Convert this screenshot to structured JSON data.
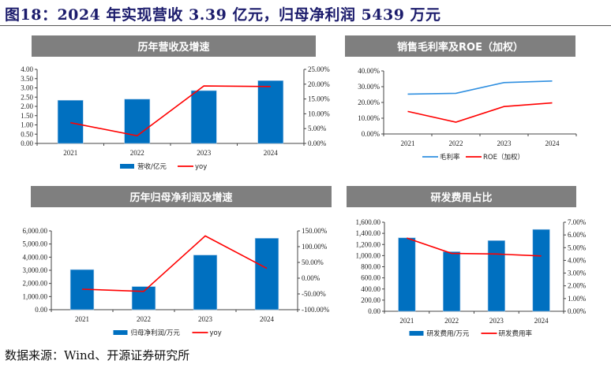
{
  "figure_title": "图18：2024 年实现营收 3.39 亿元，归母净利润 5439 万元",
  "source": "数据来源：Wind、开源证券研究所",
  "colors": {
    "bar": "#0070c0",
    "line_red": "#ff0000",
    "line_blue": "#2f8fe0",
    "panel_title_bg": "#7f7f7f",
    "title": "#1c1c6c"
  },
  "chart_data": [
    {
      "type": "bar+line",
      "title": "历年营收及增速",
      "categories": [
        "2021",
        "2022",
        "2023",
        "2024"
      ],
      "left_axis": {
        "range": [
          0,
          4
        ],
        "ticks": [
          "0.00",
          "0.50",
          "1.00",
          "1.50",
          "2.00",
          "2.50",
          "3.00",
          "3.50",
          "4.00"
        ]
      },
      "right_axis": {
        "range": [
          0,
          25
        ],
        "ticks": [
          "0.00%",
          "5.00%",
          "10.00%",
          "15.00%",
          "20.00%",
          "25.00%"
        ]
      },
      "series": [
        {
          "name": "营收/亿元",
          "kind": "bar",
          "axis": "left",
          "values": [
            2.33,
            2.39,
            2.85,
            3.39
          ]
        },
        {
          "name": "yoy",
          "kind": "line",
          "axis": "right",
          "color": "#ff0000",
          "values": [
            7.0,
            2.6,
            19.4,
            19.2
          ]
        }
      ],
      "legend": "bottom"
    },
    {
      "type": "line",
      "title": "销售毛利率及ROE（加权）",
      "categories": [
        "2021",
        "2022",
        "2023",
        "2024"
      ],
      "left_axis": {
        "range": [
          0,
          40
        ],
        "ticks": [
          "0.00%",
          "10.00%",
          "20.00%",
          "30.00%",
          "40.00%"
        ]
      },
      "series": [
        {
          "name": "毛利率",
          "kind": "line",
          "axis": "left",
          "color": "#2f8fe0",
          "values": [
            25.3,
            25.8,
            32.6,
            33.6
          ]
        },
        {
          "name": "ROE（加权）",
          "kind": "line",
          "axis": "left",
          "color": "#ff0000",
          "values": [
            14.3,
            7.5,
            17.4,
            19.7
          ]
        }
      ],
      "legend": "bottom"
    },
    {
      "type": "bar+line",
      "title": "历年归母净利润及增速",
      "categories": [
        "2021",
        "2022",
        "2023",
        "2024"
      ],
      "left_axis": {
        "range": [
          0,
          6000
        ],
        "ticks": [
          "0.00",
          "1,000.00",
          "2,000.00",
          "3,000.00",
          "4,000.00",
          "5,000.00",
          "6,000.00"
        ]
      },
      "right_axis": {
        "range": [
          -100,
          150
        ],
        "ticks": [
          "-100.00%",
          "-50.00%",
          "0.00%",
          "50.00%",
          "100.00%",
          "150.00%"
        ]
      },
      "series": [
        {
          "name": "归母净利润/万元",
          "kind": "bar",
          "axis": "left",
          "values": [
            3050,
            1760,
            4160,
            5439
          ]
        },
        {
          "name": "yoy",
          "kind": "line",
          "axis": "right",
          "color": "#ff0000",
          "values": [
            -35,
            -42,
            134,
            31
          ]
        }
      ],
      "legend": "bottom"
    },
    {
      "type": "bar+line",
      "title": "研发费用占比",
      "categories": [
        "2021",
        "2022",
        "2023",
        "2024"
      ],
      "left_axis": {
        "range": [
          0,
          1600
        ],
        "ticks": [
          "0.00",
          "200.00",
          "400.00",
          "600.00",
          "800.00",
          "1,000.00",
          "1,200.00",
          "1,400.00",
          "1,600.00"
        ]
      },
      "right_axis": {
        "range": [
          0,
          7
        ],
        "ticks": [
          "0.00%",
          "1.00%",
          "2.00%",
          "3.00%",
          "4.00%",
          "5.00%",
          "6.00%",
          "7.00%"
        ]
      },
      "series": [
        {
          "name": "研发费用/万元",
          "kind": "bar",
          "axis": "left",
          "values": [
            1320,
            1070,
            1270,
            1470
          ]
        },
        {
          "name": "研发费用率",
          "kind": "line",
          "axis": "right",
          "color": "#ff0000",
          "values": [
            5.75,
            4.55,
            4.5,
            4.35
          ]
        }
      ],
      "legend": "bottom"
    }
  ]
}
